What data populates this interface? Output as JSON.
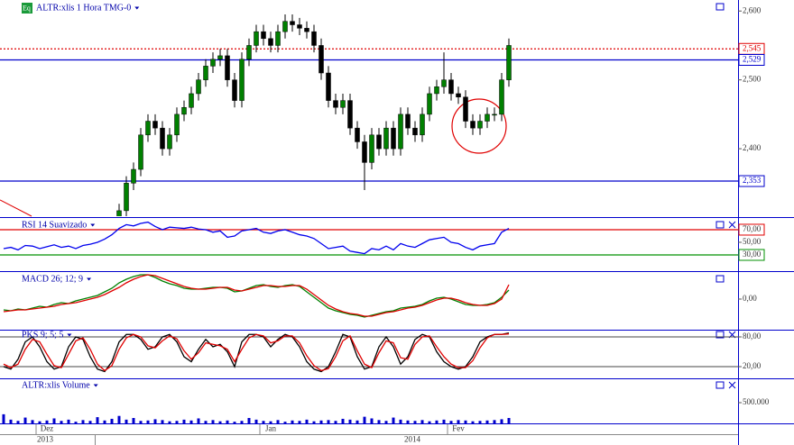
{
  "chart_data": [
    {
      "type": "candlestick",
      "title": "ALTR:xlis 1 Hora TMG-0",
      "categories": [
        null,
        null,
        null,
        null,
        null,
        null,
        "Dez",
        null,
        null,
        null,
        null,
        null,
        null,
        null,
        null,
        null,
        null,
        null,
        null,
        null,
        null,
        null,
        null,
        null,
        null,
        null,
        null,
        null,
        null,
        null,
        null,
        null,
        null,
        null,
        null,
        null,
        null,
        "Jan",
        null,
        null,
        null,
        null,
        null,
        null,
        null,
        null,
        null,
        null,
        null,
        null,
        null,
        null,
        null,
        null,
        null,
        null,
        null,
        null,
        null,
        null,
        null,
        null,
        null,
        "Fev",
        null,
        null,
        null,
        null,
        null,
        null,
        null
      ],
      "years": [
        "2013",
        "2014"
      ],
      "open": [
        null,
        null,
        null,
        null,
        null,
        null,
        null,
        null,
        null,
        null,
        null,
        null,
        null,
        null,
        null,
        null,
        2.29,
        2.31,
        2.35,
        2.37,
        2.42,
        2.44,
        2.43,
        2.4,
        2.42,
        2.45,
        2.46,
        2.48,
        2.5,
        2.52,
        2.53,
        2.535,
        2.5,
        2.47,
        2.53,
        2.55,
        2.57,
        2.56,
        2.55,
        2.57,
        2.585,
        2.58,
        2.575,
        2.57,
        2.55,
        2.51,
        2.47,
        2.46,
        2.47,
        2.43,
        2.41,
        2.38,
        2.42,
        2.4,
        2.43,
        2.4,
        2.45,
        2.43,
        2.42,
        2.45,
        2.48,
        2.49,
        2.5,
        2.48,
        2.475,
        2.44,
        2.43,
        2.44,
        2.45,
        2.45,
        2.5
      ],
      "high": [
        null,
        null,
        null,
        null,
        null,
        null,
        null,
        null,
        null,
        null,
        null,
        null,
        null,
        null,
        null,
        null,
        2.32,
        2.36,
        2.38,
        2.43,
        2.45,
        2.45,
        2.44,
        2.43,
        2.46,
        2.47,
        2.49,
        2.51,
        2.53,
        2.54,
        2.545,
        2.545,
        2.51,
        2.54,
        2.56,
        2.58,
        2.58,
        2.57,
        2.58,
        2.595,
        2.595,
        2.59,
        2.585,
        2.58,
        2.56,
        2.52,
        2.48,
        2.48,
        2.48,
        2.44,
        2.42,
        2.43,
        2.43,
        2.44,
        2.44,
        2.46,
        2.46,
        2.44,
        2.46,
        2.49,
        2.5,
        2.54,
        2.51,
        2.49,
        2.485,
        2.45,
        2.45,
        2.46,
        2.46,
        2.51,
        2.56
      ],
      "low": [
        null,
        null,
        null,
        null,
        null,
        null,
        null,
        null,
        null,
        null,
        null,
        null,
        null,
        null,
        null,
        null,
        2.28,
        2.3,
        2.34,
        2.36,
        2.41,
        2.42,
        2.39,
        2.39,
        2.41,
        2.44,
        2.45,
        2.47,
        2.49,
        2.51,
        2.52,
        2.49,
        2.46,
        2.46,
        2.52,
        2.54,
        2.55,
        2.54,
        2.54,
        2.56,
        2.57,
        2.565,
        2.56,
        2.54,
        2.5,
        2.46,
        2.45,
        2.45,
        2.42,
        2.4,
        2.34,
        2.37,
        2.39,
        2.39,
        2.39,
        2.39,
        2.42,
        2.41,
        2.41,
        2.44,
        2.47,
        2.48,
        2.47,
        2.465,
        2.43,
        2.42,
        2.42,
        2.43,
        2.44,
        2.44,
        2.49
      ],
      "close": [
        null,
        null,
        null,
        null,
        null,
        null,
        null,
        null,
        null,
        null,
        null,
        null,
        null,
        null,
        null,
        null,
        2.31,
        2.35,
        2.37,
        2.42,
        2.44,
        2.43,
        2.4,
        2.42,
        2.45,
        2.46,
        2.48,
        2.5,
        2.52,
        2.53,
        2.535,
        2.5,
        2.47,
        2.53,
        2.55,
        2.57,
        2.56,
        2.55,
        2.57,
        2.585,
        2.58,
        2.575,
        2.57,
        2.55,
        2.51,
        2.47,
        2.46,
        2.47,
        2.43,
        2.41,
        2.38,
        2.42,
        2.4,
        2.43,
        2.4,
        2.45,
        2.43,
        2.42,
        2.45,
        2.48,
        2.49,
        2.5,
        2.48,
        2.475,
        2.44,
        2.43,
        2.44,
        2.45,
        2.45,
        2.5,
        2.55
      ],
      "up_color": "#008000",
      "down_color": "#000000",
      "ylim": [
        2.302,
        2.616
      ],
      "yticks": [
        {
          "value": 2.6,
          "label": "2,600"
        },
        {
          "value": 2.5,
          "label": "2,500"
        },
        {
          "value": 2.4,
          "label": "2,400"
        }
      ],
      "levels": [
        {
          "value": 2.545,
          "label": "2,545",
          "color": "#e00000",
          "style": "dotted"
        },
        {
          "value": 2.529,
          "label": "2,529",
          "color": "#0000cc"
        },
        {
          "value": 2.353,
          "label": "2,353",
          "color": "#0000cc"
        }
      ]
    },
    {
      "type": "line",
      "title": "RSI 14 Suavizado",
      "series": [
        {
          "color": "#0000ee",
          "values": [
            40,
            42,
            38,
            45,
            44,
            40,
            43,
            46,
            42,
            44,
            40,
            45,
            47,
            50,
            55,
            62,
            72,
            78,
            76,
            80,
            82,
            75,
            70,
            74,
            73,
            72,
            74,
            71,
            70,
            66,
            68,
            58,
            60,
            68,
            70,
            72,
            66,
            64,
            68,
            70,
            66,
            62,
            60,
            56,
            48,
            40,
            42,
            44,
            36,
            34,
            32,
            40,
            38,
            44,
            38,
            48,
            44,
            42,
            48,
            54,
            56,
            58,
            50,
            48,
            42,
            38,
            44,
            46,
            48,
            66,
            72
          ]
        }
      ],
      "ylim": [
        5.7,
        87.1
      ],
      "yticks": [
        {
          "value": 70,
          "label": "70,00"
        },
        {
          "value": 50,
          "label": "50,00"
        },
        {
          "value": 30,
          "label": "30,00"
        }
      ],
      "levels": [
        {
          "value": 70,
          "color": "#e00000"
        },
        {
          "value": 30,
          "color": "#009000"
        }
      ]
    },
    {
      "type": "line",
      "title": "MACD 26; 12; 9",
      "series": [
        {
          "color": "#008000",
          "values": [
            -0.012,
            -0.013,
            -0.011,
            -0.012,
            -0.01,
            -0.008,
            -0.009,
            -0.006,
            -0.004,
            -0.005,
            -0.002,
            0.0,
            0.002,
            0.004,
            0.008,
            0.012,
            0.018,
            0.022,
            0.025,
            0.027,
            0.027,
            0.024,
            0.02,
            0.017,
            0.015,
            0.012,
            0.011,
            0.011,
            0.012,
            0.013,
            0.013,
            0.012,
            0.008,
            0.009,
            0.012,
            0.015,
            0.016,
            0.014,
            0.013,
            0.015,
            0.016,
            0.014,
            0.008,
            0.002,
            -0.004,
            -0.01,
            -0.013,
            -0.015,
            -0.017,
            -0.018,
            -0.02,
            -0.018,
            -0.016,
            -0.014,
            -0.013,
            -0.01,
            -0.009,
            -0.008,
            -0.006,
            -0.002,
            0.001,
            0.002,
            0.0,
            -0.003,
            -0.006,
            -0.007,
            -0.007,
            -0.006,
            -0.004,
            0.002,
            0.01
          ]
        },
        {
          "color": "#e00000",
          "values": [
            -0.014,
            -0.013,
            -0.012,
            -0.012,
            -0.011,
            -0.01,
            -0.009,
            -0.008,
            -0.006,
            -0.005,
            -0.004,
            -0.002,
            0.0,
            0.002,
            0.005,
            0.009,
            0.013,
            0.018,
            0.022,
            0.025,
            0.027,
            0.026,
            0.023,
            0.02,
            0.017,
            0.014,
            0.012,
            0.011,
            0.011,
            0.012,
            0.013,
            0.013,
            0.01,
            0.009,
            0.011,
            0.013,
            0.015,
            0.015,
            0.014,
            0.014,
            0.015,
            0.015,
            0.011,
            0.005,
            -0.001,
            -0.007,
            -0.011,
            -0.014,
            -0.016,
            -0.017,
            -0.019,
            -0.019,
            -0.017,
            -0.015,
            -0.014,
            -0.012,
            -0.01,
            -0.009,
            -0.007,
            -0.004,
            -0.001,
            0.001,
            0.001,
            -0.001,
            -0.004,
            -0.006,
            -0.007,
            -0.007,
            -0.005,
            0.0,
            0.016
          ]
        }
      ],
      "ylim": [
        -0.033,
        0.029
      ],
      "yticks": [
        {
          "value": 0,
          "label": "0,00"
        }
      ]
    },
    {
      "type": "line",
      "title": "PKS 9; 5; 5",
      "series": [
        {
          "color": "#000000",
          "values": [
            20,
            15,
            35,
            70,
            80,
            60,
            30,
            15,
            20,
            60,
            80,
            75,
            40,
            15,
            10,
            30,
            70,
            85,
            85,
            75,
            55,
            60,
            80,
            85,
            70,
            40,
            30,
            55,
            75,
            60,
            65,
            50,
            20,
            70,
            85,
            85,
            80,
            60,
            75,
            85,
            80,
            60,
            30,
            15,
            10,
            20,
            50,
            85,
            80,
            40,
            15,
            20,
            60,
            80,
            60,
            25,
            40,
            75,
            85,
            80,
            50,
            30,
            20,
            15,
            20,
            40,
            70,
            80,
            85,
            85,
            88
          ]
        },
        {
          "color": "#e00000",
          "values": [
            25,
            18,
            25,
            55,
            75,
            70,
            45,
            22,
            18,
            45,
            72,
            78,
            55,
            25,
            12,
            22,
            55,
            78,
            85,
            80,
            62,
            58,
            72,
            82,
            76,
            52,
            35,
            48,
            68,
            65,
            62,
            55,
            30,
            55,
            78,
            85,
            82,
            68,
            72,
            82,
            82,
            68,
            42,
            22,
            12,
            16,
            40,
            72,
            82,
            52,
            25,
            18,
            48,
            72,
            68,
            38,
            35,
            65,
            80,
            82,
            60,
            40,
            25,
            18,
            18,
            32,
            58,
            78,
            85,
            85,
            86
          ]
        }
      ],
      "ylim": [
        -3.6,
        90.9
      ],
      "yticks": [
        {
          "value": 80,
          "label": "80,00"
        },
        {
          "value": 20,
          "label": "20,00"
        }
      ],
      "grid": true
    },
    {
      "type": "bar",
      "title": "ALTR:xlis Volume",
      "color": "#0000cc",
      "values": [
        220000,
        90000,
        60000,
        140000,
        80000,
        50000,
        70000,
        120000,
        60000,
        90000,
        40000,
        80000,
        60000,
        150000,
        70000,
        110000,
        180000,
        90000,
        130000,
        60000,
        70000,
        100000,
        80000,
        50000,
        60000,
        90000,
        70000,
        120000,
        60000,
        80000,
        50000,
        70000,
        40000,
        60000,
        130000,
        90000,
        60000,
        50000,
        80000,
        40000,
        70000,
        60000,
        90000,
        50000,
        70000,
        80000,
        60000,
        110000,
        90000,
        70000,
        160000,
        120000,
        80000,
        60000,
        140000,
        90000,
        70000,
        60000,
        80000,
        50000,
        70000,
        90000,
        60000,
        80000,
        70000,
        50000,
        60000,
        70000,
        80000,
        100000,
        130000
      ],
      "ylim": [
        0,
        1065000
      ],
      "yticks": [
        {
          "value": 500000,
          "label": "500.000"
        }
      ]
    }
  ]
}
